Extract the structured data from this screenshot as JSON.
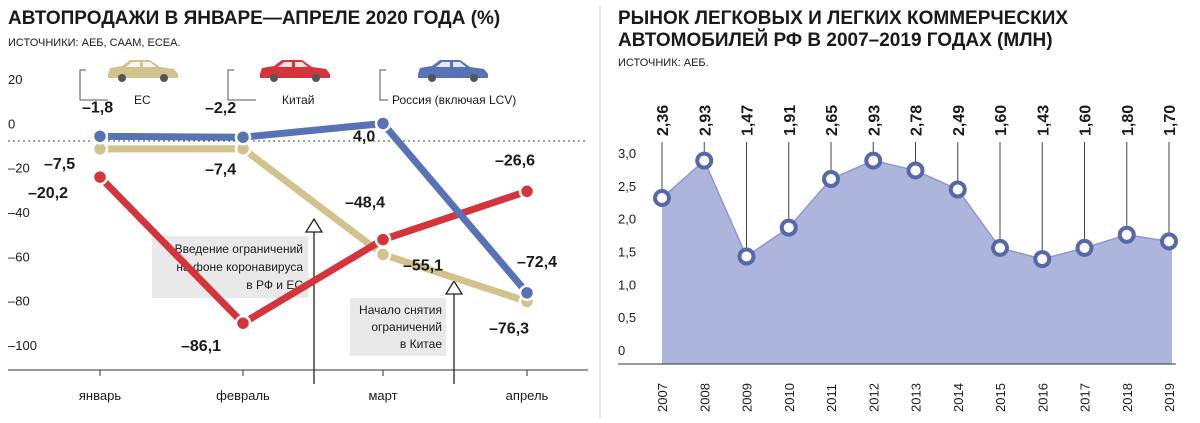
{
  "colors": {
    "eu": "#d2c38e",
    "china": "#d4343c",
    "russia": "#5872b6",
    "area_fill": "#aeb5dc",
    "area_line": "#8d97cc",
    "annotation_bg": "#e9e9e9",
    "divider": "#c8c8c8"
  },
  "left": {
    "title": "АВТОПРОДАЖИ В ЯНВАРЕ—АПРЕЛЕ 2020 ГОДА (%)",
    "source": "ИСТОЧНИКИ: АЕБ, CAAM, ECEA.",
    "legend": [
      {
        "label": "ЕС",
        "icon": "car-icon",
        "color": "#d2c38e"
      },
      {
        "label": "Китай",
        "icon": "car-icon",
        "color": "#d4343c"
      },
      {
        "label": "Россия (включая LCV)",
        "icon": "car-icon",
        "color": "#5872b6"
      }
    ],
    "annotations": [
      {
        "lines": [
          "Введение ограничений",
          "на фоне коронавируса",
          "в РФ и ЕС"
        ]
      },
      {
        "lines": [
          "Начало снятия",
          "ограничений",
          "в Китае"
        ]
      }
    ]
  },
  "right": {
    "title_line1": "РЫНОК ЛЕГКОВЫХ И ЛЕГКИХ КОММЕРЧЕСКИХ",
    "title_line2": "АВТОМОБИЛЕЙ РФ В 2007–2019 ГОДАХ (МЛН)",
    "source": "ИСТОЧНИК: АЕБ."
  },
  "chart_data": [
    {
      "type": "line",
      "title": "АВТОПРОДАЖИ В ЯНВАРЕ—АПРЕЛЕ 2020 ГОДА (%)",
      "categories": [
        "январь",
        "февраль",
        "март",
        "апрель"
      ],
      "ylim": [
        -100,
        20
      ],
      "yticks": [
        "20",
        "0",
        "–20",
        "–40",
        "–60",
        "–80",
        "–100"
      ],
      "ytick_values": [
        20,
        0,
        -20,
        -40,
        -60,
        -80,
        -100
      ],
      "grid": false,
      "series": [
        {
          "name": "ЕС",
          "values": [
            -7.5,
            -7.4,
            -55.1,
            -76.3
          ],
          "labels": [
            "–7,5",
            "–7,4",
            "–55,1",
            "–76,3"
          ]
        },
        {
          "name": "Китай",
          "values": [
            -20.2,
            -86.1,
            -48.4,
            -26.6
          ],
          "labels": [
            "–20,2",
            "–86,1",
            "–48,4",
            "–26,6"
          ]
        },
        {
          "name": "Россия (включая LCV)",
          "values": [
            -1.8,
            -2.2,
            4.0,
            -72.4
          ],
          "labels": [
            "–1,8",
            "–2,2",
            "4,0",
            "–72,4"
          ]
        }
      ],
      "legend_position": "top"
    },
    {
      "type": "area",
      "title": "РЫНОК ЛЕГКОВЫХ И ЛЕГКИХ КОММЕРЧЕСКИХ АВТОМОБИЛЕЙ РФ В 2007–2019 ГОДАХ (МЛН)",
      "x": [
        "2007",
        "2008",
        "2009",
        "2010",
        "2011",
        "2012",
        "2013",
        "2014",
        "2015",
        "2016",
        "2017",
        "2018",
        "2019"
      ],
      "values": [
        2.36,
        2.93,
        1.47,
        1.91,
        2.65,
        2.93,
        2.78,
        2.49,
        1.6,
        1.43,
        1.6,
        1.8,
        1.7
      ],
      "labels": [
        "2,36",
        "2,93",
        "1,47",
        "1,91",
        "2,65",
        "2,93",
        "2,78",
        "2,49",
        "1,60",
        "1,43",
        "1,60",
        "1,80",
        "1,70"
      ],
      "ylim": [
        0,
        3.0
      ],
      "yticks": [
        "3,0",
        "2,5",
        "2,0",
        "1,5",
        "1,0",
        "0,5",
        "0"
      ],
      "ytick_values": [
        3.0,
        2.5,
        2.0,
        1.5,
        1.0,
        0.5,
        0
      ],
      "grid": false
    }
  ]
}
